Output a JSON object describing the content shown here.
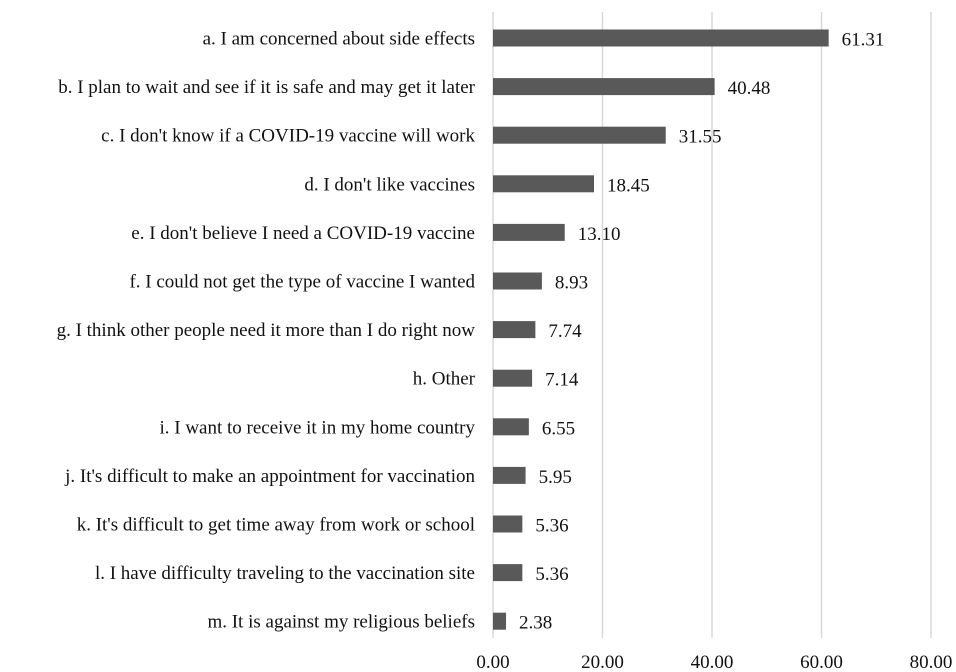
{
  "chart_data": {
    "type": "bar",
    "orientation": "horizontal",
    "title": "",
    "xlabel": "",
    "ylabel": "",
    "xlim": [
      0,
      80
    ],
    "xticks": [
      0,
      20,
      40,
      60,
      80
    ],
    "xtick_labels": [
      "0.00",
      "20.00",
      "40.00",
      "60.00",
      "80.00"
    ],
    "grid": "vertical",
    "legend": "none",
    "bar_color": "#595959",
    "grid_color": "#d9d9d9",
    "categories": [
      "a. I am concerned about side effects",
      "b. I plan to wait and see if it is safe and may get it later",
      "c. I don't know if a COVID-19 vaccine will work",
      "d. I don't like vaccines",
      "e. I don't believe I need a COVID-19 vaccine",
      "f. I could not get the type of vaccine I wanted",
      "g. I think other people need it more than I do right now",
      "h. Other",
      "i. I want to receive it in my home country",
      "j. It's difficult to make an appointment for vaccination",
      "k. It's difficult to get time away from work or school",
      "l. I have difficulty traveling to the vaccination site",
      "m. It is against my religious beliefs"
    ],
    "values": [
      61.31,
      40.48,
      31.55,
      18.45,
      13.1,
      8.93,
      7.74,
      7.14,
      6.55,
      5.95,
      5.36,
      5.36,
      2.38
    ],
    "value_labels": [
      "61.31",
      "40.48",
      "31.55",
      "18.45",
      "13.10",
      "8.93",
      "7.74",
      "7.14",
      "6.55",
      "5.95",
      "5.36",
      "5.36",
      "2.38"
    ]
  }
}
